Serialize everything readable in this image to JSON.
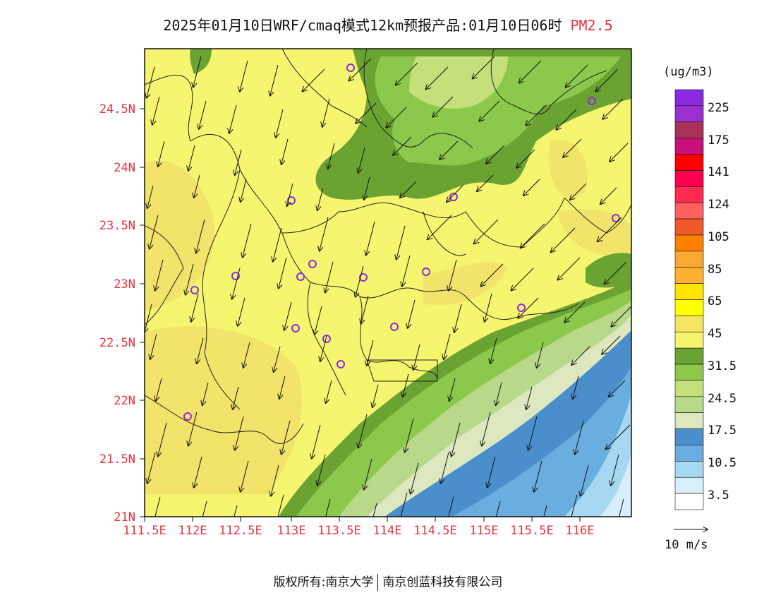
{
  "title": {
    "main": "2025年01月10日WRF/cmaq模式12km预报产品:01月10日06时",
    "product": "PM2.5"
  },
  "lat_ticks": [
    "24.5N",
    "24N",
    "23.5N",
    "23N",
    "22.5N",
    "22N",
    "21.5N",
    "21N"
  ],
  "lon_ticks": [
    "111.5E",
    "112E",
    "112.5E",
    "113E",
    "113.5E",
    "114E",
    "114.5E",
    "115E",
    "115.5E",
    "116E"
  ],
  "legend": {
    "units": "(ug/m3)",
    "labels": [
      "225",
      "175",
      "141",
      "124",
      "105",
      "85",
      "65",
      "45",
      "31.5",
      "24.5",
      "17.5",
      "10.5",
      "3.5"
    ],
    "colors": [
      "#8a2be2",
      "#9b30d0",
      "#a8305a",
      "#c8107a",
      "#ff0000",
      "#ff0050",
      "#ff2b50",
      "#ff6060",
      "#f05a28",
      "#ff8000",
      "#fba733",
      "#ffb030",
      "#ffe400",
      "#ffff00",
      "#f7e463",
      "#f5f570",
      "#6ba332",
      "#8cc84b",
      "#c5e07a",
      "#b8d88a",
      "#dde8c0",
      "#4a8ecb",
      "#6aaee0",
      "#a6d8f2",
      "#d8eefa",
      "#ffffff"
    ]
  },
  "wind_ref": {
    "label": "10 m/s"
  },
  "footer": {
    "left": "版权所有:南京大学",
    "right": "南京创蓝科技有限公司"
  }
}
